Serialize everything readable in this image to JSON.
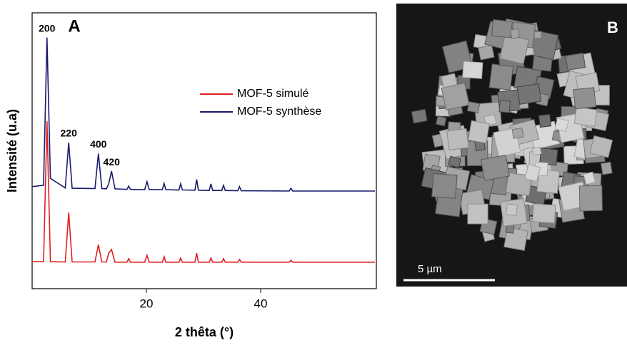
{
  "chart_data": {
    "type": "line",
    "panel_label": "A",
    "x_label": "2 thêta (°)",
    "y_label": "Intensité (u.a)",
    "x": [
      0,
      2.0,
      2.6,
      3.2,
      5.8,
      6.4,
      7.0,
      11.0,
      11.6,
      12.2,
      13.0,
      13.4,
      13.9,
      14.5,
      16.6,
      16.9,
      17.2,
      19.7,
      20.1,
      20.5,
      22.8,
      23.1,
      23.4,
      25.7,
      26.0,
      26.3,
      28.5,
      28.8,
      29.1,
      31.0,
      31.3,
      31.6,
      33.2,
      33.5,
      33.8,
      36.0,
      36.3,
      36.6,
      45.0,
      45.3,
      45.6,
      60
    ],
    "series": [
      {
        "name": "MOF-5 simulé",
        "color": "#e02020",
        "values": [
          9.8,
          9.8,
          60.7,
          9.8,
          9.7,
          27.6,
          9.7,
          9.7,
          16.0,
          9.7,
          9.7,
          12.9,
          14.2,
          9.6,
          9.6,
          10.9,
          9.6,
          9.6,
          12.1,
          9.6,
          9.6,
          11.6,
          9.6,
          9.6,
          11.1,
          9.6,
          9.6,
          12.9,
          9.6,
          9.6,
          11.1,
          9.6,
          9.6,
          10.9,
          9.6,
          9.6,
          10.6,
          9.6,
          9.6,
          10.3,
          9.6,
          9.6
        ]
      },
      {
        "name": "MOF-5 synthèse",
        "color": "#1a1a6e",
        "values": [
          37.0,
          37.5,
          91,
          40,
          36.5,
          53,
          36.4,
          36.3,
          49,
          36.3,
          36.2,
          38,
          42.6,
          36.2,
          36.0,
          37.2,
          36.0,
          35.9,
          38.8,
          35.9,
          35.9,
          38.2,
          35.9,
          35.8,
          38.0,
          35.8,
          35.7,
          39.6,
          35.7,
          35.6,
          38.0,
          35.6,
          35.6,
          37.5,
          35.6,
          35.5,
          37.0,
          35.5,
          35.4,
          36.4,
          35.4,
          35.4
        ]
      }
    ],
    "annotations": [
      {
        "text": "200",
        "x": 2.6
      },
      {
        "text": "220",
        "x": 6.4
      },
      {
        "text": "400",
        "x": 11.6
      },
      {
        "text": "420",
        "x": 13.9
      }
    ],
    "xlim": [
      0,
      60.25
    ],
    "xticks": [
      20,
      40
    ],
    "ylim": [
      0,
      100
    ],
    "legend": "upper right"
  },
  "image_panel": {
    "label": "B",
    "scale_bar": "5 µm"
  }
}
